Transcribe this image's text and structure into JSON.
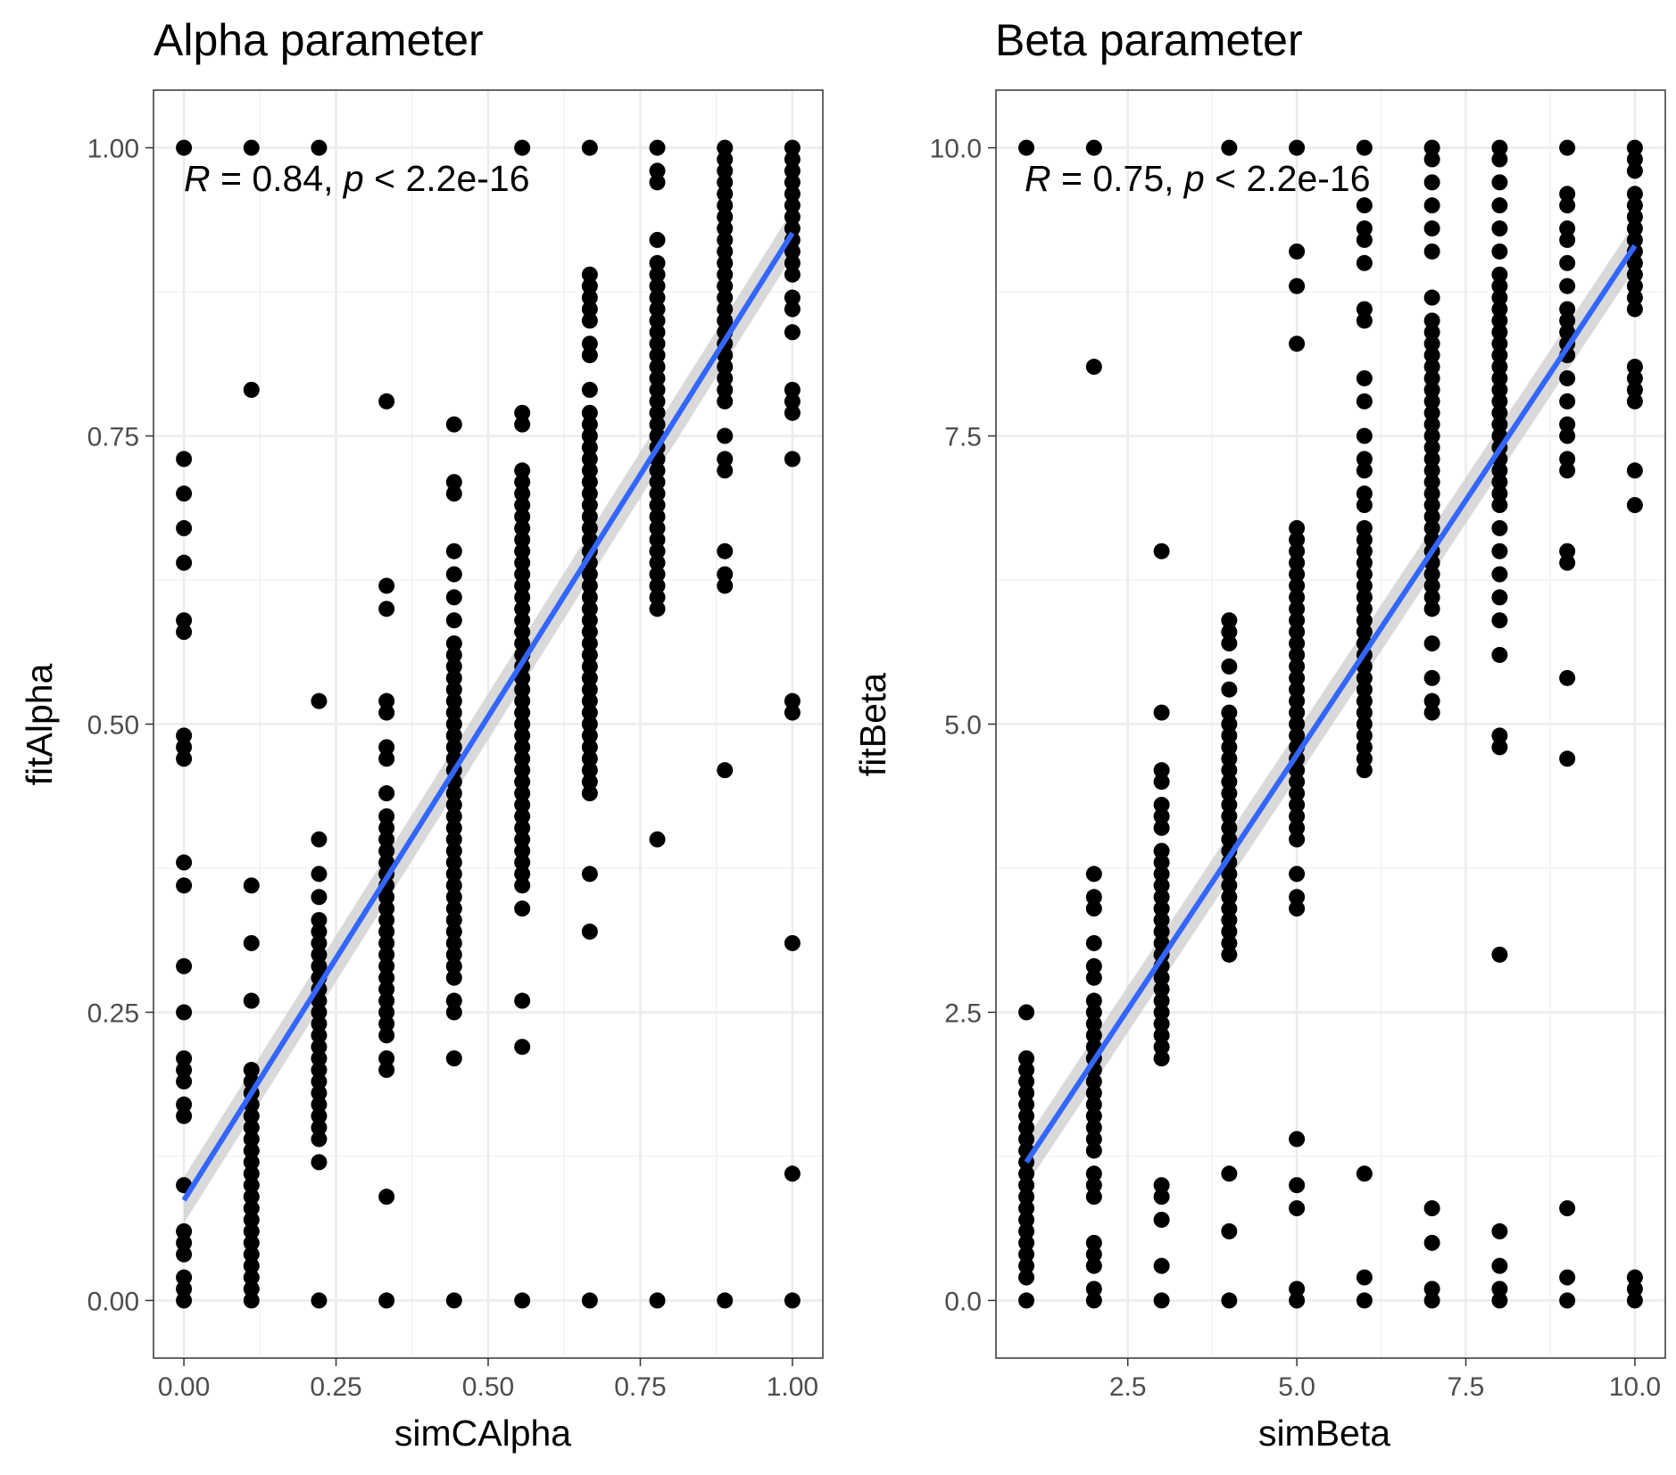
{
  "chart_data": [
    {
      "type": "scatter",
      "title": "Alpha parameter",
      "xlabel": "simCAlpha",
      "ylabel": "fitAlpha",
      "xlim": [
        -0.05,
        1.05
      ],
      "ylim": [
        -0.05,
        1.05
      ],
      "xticks": [
        0,
        0.25,
        0.5,
        0.75,
        1
      ],
      "xtick_labels": [
        "0.00",
        "0.25",
        "0.50",
        "0.75",
        "1.00"
      ],
      "yticks": [
        0,
        0.25,
        0.5,
        0.75,
        1
      ],
      "ytick_labels": [
        "0.00",
        "0.25",
        "0.50",
        "0.75",
        "1.00"
      ],
      "grid": true,
      "point_color": "#000000",
      "annotation": {
        "r_symbol": "R",
        "r_text": " = 0.84, ",
        "p_symbol": "p",
        "p_text": " < 2.2e-16"
      },
      "x_levels": [
        0,
        0.111,
        0.222,
        0.333,
        0.444,
        0.556,
        0.667,
        0.778,
        0.889,
        1.0
      ],
      "points_by_x": [
        [
          0,
          0.01,
          0.02,
          0.04,
          0.05,
          0.06,
          0.1,
          0.16,
          0.17,
          0.19,
          0.2,
          0.21,
          0.25,
          0.29,
          0.36,
          0.38,
          0.47,
          0.48,
          0.49,
          0.58,
          0.59,
          0.64,
          0.67,
          0.7,
          0.73,
          1.0
        ],
        [
          0,
          0.01,
          0.02,
          0.03,
          0.04,
          0.05,
          0.06,
          0.07,
          0.08,
          0.09,
          0.1,
          0.11,
          0.12,
          0.13,
          0.14,
          0.15,
          0.16,
          0.17,
          0.18,
          0.19,
          0.2,
          0.26,
          0.31,
          0.36,
          0.79,
          1.0
        ],
        [
          0,
          0.12,
          0.14,
          0.15,
          0.16,
          0.17,
          0.18,
          0.19,
          0.2,
          0.21,
          0.22,
          0.23,
          0.24,
          0.25,
          0.26,
          0.27,
          0.28,
          0.29,
          0.3,
          0.31,
          0.32,
          0.33,
          0.35,
          0.37,
          0.4,
          0.52,
          1.0
        ],
        [
          0,
          0.09,
          0.2,
          0.21,
          0.23,
          0.24,
          0.25,
          0.26,
          0.27,
          0.28,
          0.29,
          0.3,
          0.31,
          0.32,
          0.33,
          0.34,
          0.35,
          0.36,
          0.37,
          0.38,
          0.39,
          0.4,
          0.41,
          0.42,
          0.44,
          0.47,
          0.48,
          0.51,
          0.52,
          0.6,
          0.62,
          0.78
        ],
        [
          0,
          0.21,
          0.25,
          0.26,
          0.28,
          0.29,
          0.3,
          0.31,
          0.32,
          0.33,
          0.34,
          0.35,
          0.36,
          0.37,
          0.38,
          0.39,
          0.4,
          0.41,
          0.42,
          0.43,
          0.44,
          0.45,
          0.46,
          0.47,
          0.48,
          0.49,
          0.5,
          0.51,
          0.52,
          0.53,
          0.54,
          0.55,
          0.56,
          0.57,
          0.59,
          0.61,
          0.63,
          0.65,
          0.7,
          0.71,
          0.76
        ],
        [
          0,
          0.22,
          0.26,
          0.34,
          0.36,
          0.37,
          0.38,
          0.39,
          0.4,
          0.41,
          0.42,
          0.43,
          0.44,
          0.45,
          0.46,
          0.47,
          0.48,
          0.49,
          0.5,
          0.51,
          0.52,
          0.53,
          0.54,
          0.55,
          0.56,
          0.57,
          0.58,
          0.59,
          0.6,
          0.61,
          0.62,
          0.63,
          0.64,
          0.65,
          0.66,
          0.67,
          0.68,
          0.69,
          0.7,
          0.71,
          0.72,
          0.76,
          0.77,
          1.0
        ],
        [
          0,
          0.32,
          0.37,
          0.44,
          0.45,
          0.46,
          0.47,
          0.48,
          0.49,
          0.5,
          0.51,
          0.52,
          0.53,
          0.54,
          0.55,
          0.56,
          0.57,
          0.58,
          0.59,
          0.6,
          0.61,
          0.62,
          0.63,
          0.64,
          0.65,
          0.66,
          0.67,
          0.68,
          0.69,
          0.7,
          0.71,
          0.72,
          0.73,
          0.74,
          0.75,
          0.76,
          0.77,
          0.79,
          0.82,
          0.83,
          0.85,
          0.86,
          0.87,
          0.88,
          0.89,
          1.0
        ],
        [
          0,
          0.4,
          0.6,
          0.61,
          0.62,
          0.63,
          0.64,
          0.65,
          0.66,
          0.67,
          0.68,
          0.69,
          0.7,
          0.71,
          0.72,
          0.73,
          0.74,
          0.75,
          0.76,
          0.77,
          0.78,
          0.79,
          0.8,
          0.81,
          0.82,
          0.83,
          0.84,
          0.85,
          0.86,
          0.87,
          0.88,
          0.89,
          0.9,
          0.92,
          0.97,
          0.98,
          1.0
        ],
        [
          0,
          0.46,
          0.62,
          0.63,
          0.65,
          0.72,
          0.73,
          0.75,
          0.78,
          0.79,
          0.8,
          0.81,
          0.82,
          0.83,
          0.84,
          0.85,
          0.86,
          0.87,
          0.88,
          0.89,
          0.9,
          0.91,
          0.92,
          0.93,
          0.94,
          0.95,
          0.96,
          0.97,
          0.98,
          0.99,
          1.0
        ],
        [
          0,
          0.11,
          0.31,
          0.51,
          0.52,
          0.73,
          0.77,
          0.78,
          0.79,
          0.84,
          0.86,
          0.87,
          0.89,
          0.9,
          0.91,
          0.92,
          0.93,
          0.94,
          0.95,
          0.96,
          0.97,
          0.98,
          0.99,
          1.0
        ]
      ],
      "fit_line": {
        "color": "#3366ff",
        "x": [
          0,
          1
        ],
        "y": [
          0.087,
          0.926
        ],
        "ci_half_width": [
          0.02,
          0.02
        ],
        "ci_color": "#cccccc"
      }
    },
    {
      "type": "scatter",
      "title": "Beta parameter",
      "xlabel": "simBeta",
      "ylabel": "fitBeta",
      "xlim": [
        0.55,
        10.45
      ],
      "ylim": [
        -0.5,
        10.5
      ],
      "xticks": [
        2.5,
        5,
        7.5,
        10
      ],
      "xtick_labels": [
        "2.5",
        "5.0",
        "7.5",
        "10.0"
      ],
      "yticks": [
        0,
        2.5,
        5,
        7.5,
        10
      ],
      "ytick_labels": [
        "0.0",
        "2.5",
        "5.0",
        "7.5",
        "10.0"
      ],
      "grid": true,
      "point_color": "#000000",
      "annotation": {
        "r_symbol": "R",
        "r_text": " = 0.75, ",
        "p_symbol": "p",
        "p_text": " < 2.2e-16"
      },
      "x_levels": [
        1,
        2,
        3,
        4,
        5,
        6,
        7,
        8,
        9,
        10
      ],
      "points_by_x": [
        [
          0,
          0.2,
          0.3,
          0.4,
          0.5,
          0.6,
          0.7,
          0.8,
          0.9,
          1.0,
          1.1,
          1.2,
          1.3,
          1.4,
          1.5,
          1.6,
          1.7,
          1.8,
          1.9,
          2.0,
          2.1,
          2.5,
          10.0
        ],
        [
          0,
          0.1,
          0.3,
          0.4,
          0.5,
          0.9,
          1.0,
          1.1,
          1.3,
          1.4,
          1.5,
          1.6,
          1.7,
          1.8,
          1.9,
          2.0,
          2.1,
          2.2,
          2.3,
          2.4,
          2.5,
          2.6,
          2.8,
          2.9,
          3.1,
          3.4,
          3.5,
          3.7,
          8.1,
          10.0
        ],
        [
          0,
          0.3,
          0.7,
          0.9,
          1.0,
          2.1,
          2.2,
          2.3,
          2.4,
          2.5,
          2.6,
          2.7,
          2.8,
          2.9,
          3.0,
          3.1,
          3.2,
          3.3,
          3.4,
          3.5,
          3.6,
          3.7,
          3.8,
          3.9,
          4.1,
          4.2,
          4.3,
          4.5,
          4.6,
          5.1,
          6.5
        ],
        [
          0,
          0.6,
          1.1,
          3.0,
          3.1,
          3.2,
          3.3,
          3.4,
          3.5,
          3.6,
          3.7,
          3.8,
          3.9,
          4.0,
          4.1,
          4.2,
          4.3,
          4.4,
          4.5,
          4.6,
          4.7,
          4.8,
          4.9,
          5.0,
          5.1,
          5.3,
          5.5,
          5.7,
          5.8,
          5.9,
          10.0
        ],
        [
          0,
          0.1,
          0.8,
          1.0,
          1.4,
          3.4,
          3.5,
          3.7,
          4.0,
          4.1,
          4.2,
          4.3,
          4.4,
          4.5,
          4.6,
          4.7,
          4.8,
          4.9,
          5.0,
          5.1,
          5.2,
          5.3,
          5.4,
          5.5,
          5.6,
          5.7,
          5.8,
          5.9,
          6.0,
          6.1,
          6.2,
          6.3,
          6.4,
          6.5,
          6.6,
          6.7,
          8.3,
          8.8,
          9.1,
          10.0
        ],
        [
          0,
          0.2,
          1.1,
          4.6,
          4.7,
          4.8,
          4.9,
          5.0,
          5.1,
          5.2,
          5.3,
          5.4,
          5.5,
          5.6,
          5.7,
          5.8,
          5.9,
          6.0,
          6.1,
          6.2,
          6.3,
          6.4,
          6.5,
          6.6,
          6.7,
          6.9,
          7.0,
          7.2,
          7.3,
          7.5,
          7.8,
          8.0,
          8.5,
          8.6,
          9.0,
          9.2,
          9.3,
          9.5,
          10.0
        ],
        [
          0,
          0.1,
          0.5,
          0.8,
          5.1,
          5.2,
          5.4,
          5.7,
          6.0,
          6.1,
          6.2,
          6.3,
          6.4,
          6.5,
          6.6,
          6.7,
          6.8,
          6.9,
          7.0,
          7.1,
          7.2,
          7.3,
          7.4,
          7.5,
          7.6,
          7.7,
          7.8,
          7.9,
          8.0,
          8.1,
          8.2,
          8.3,
          8.4,
          8.5,
          8.7,
          9.1,
          9.3,
          9.5,
          9.7,
          9.9,
          10.0
        ],
        [
          0,
          0.1,
          0.3,
          0.6,
          3.0,
          4.8,
          4.9,
          5.6,
          5.9,
          6.1,
          6.3,
          6.5,
          6.7,
          6.9,
          7.0,
          7.1,
          7.2,
          7.3,
          7.4,
          7.5,
          7.6,
          7.7,
          7.8,
          7.9,
          8.0,
          8.1,
          8.2,
          8.3,
          8.4,
          8.5,
          8.6,
          8.7,
          8.8,
          8.9,
          9.1,
          9.3,
          9.5,
          9.7,
          9.9,
          10.0
        ],
        [
          0,
          0.2,
          0.8,
          4.7,
          5.4,
          6.4,
          6.5,
          7.2,
          7.3,
          7.5,
          7.6,
          7.8,
          8.0,
          8.2,
          8.3,
          8.4,
          8.5,
          8.6,
          8.8,
          9.0,
          9.2,
          9.3,
          9.5,
          9.6,
          10.0
        ],
        [
          0,
          0.1,
          0.2,
          6.9,
          7.2,
          7.8,
          7.9,
          8.0,
          8.1,
          8.6,
          8.7,
          8.8,
          8.9,
          9.0,
          9.1,
          9.2,
          9.3,
          9.4,
          9.5,
          9.6,
          9.8,
          9.9,
          10.0
        ]
      ],
      "fit_line": {
        "color": "#3366ff",
        "x": [
          1,
          10
        ],
        "y": [
          1.2,
          9.15
        ],
        "ci_half_width": [
          0.2,
          0.2
        ],
        "ci_color": "#cccccc"
      }
    }
  ]
}
